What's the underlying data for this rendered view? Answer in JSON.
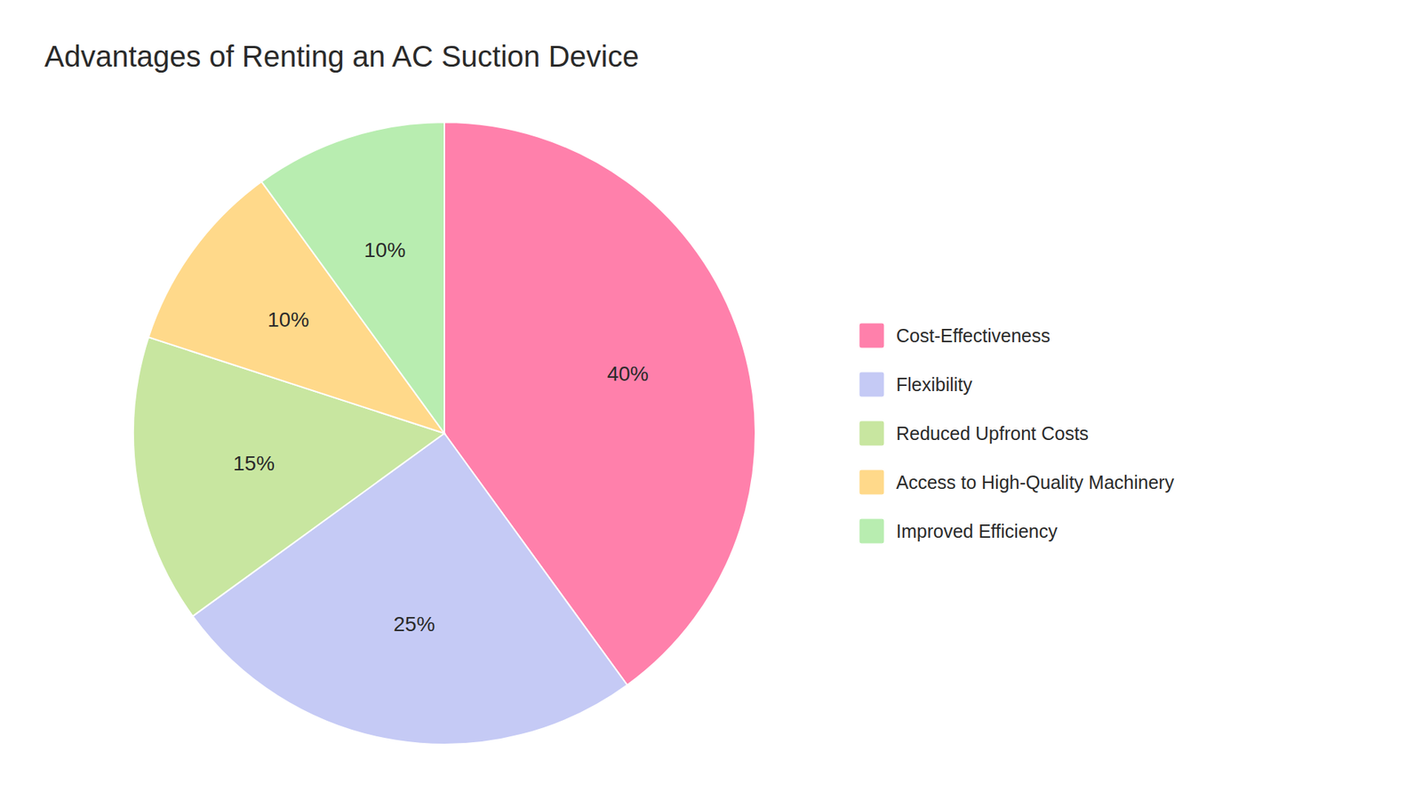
{
  "chart_data": {
    "type": "pie",
    "title": "Advantages of Renting an AC Suction Device",
    "categories": [
      "Cost-Effectiveness",
      "Flexibility",
      "Reduced Upfront Costs",
      "Access to High-Quality Machinery",
      "Improved Efficiency"
    ],
    "values": [
      40,
      25,
      15,
      10,
      10
    ],
    "value_labels": [
      "40%",
      "25%",
      "15%",
      "10%",
      "10%"
    ],
    "colors": [
      "#FF80AB",
      "#C5CAF5",
      "#C8E6A0",
      "#FFD98A",
      "#B8EDB0"
    ],
    "data_labels": true,
    "legend": "right"
  }
}
